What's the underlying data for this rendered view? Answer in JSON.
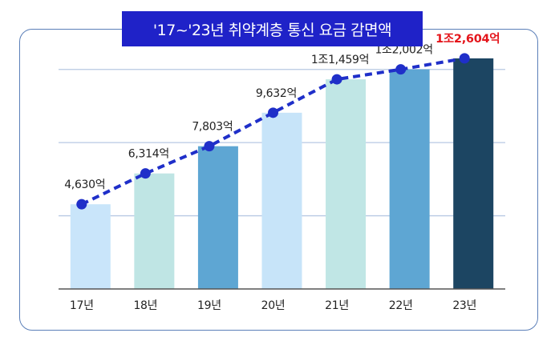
{
  "chart_data": {
    "type": "bar",
    "title": "'17~'23년 취약계층 통신 요금 감면액",
    "categories": [
      "17년",
      "18년",
      "19년",
      "20년",
      "21년",
      "22년",
      "23년"
    ],
    "values": [
      4630,
      6314,
      7803,
      9632,
      11459,
      12002,
      12604
    ],
    "unit": "억",
    "data_labels": [
      "4,630억",
      "6,314억",
      "7,803억",
      "9,632억",
      "1조1,459억",
      "1조2,002억",
      "1조2,604억"
    ],
    "highlight_index": 6,
    "ylim": [
      0,
      14000
    ],
    "grid": true,
    "overlay": "line",
    "bar_colors": [
      "#c9e5fa",
      "#bfe5e4",
      "#5ea6d3",
      "#c7e4f9",
      "#c0e6e5",
      "#5ea6d3",
      "#1c4562"
    ],
    "line_color": "#1f2fc9",
    "highlight_color": "#e4151b"
  }
}
